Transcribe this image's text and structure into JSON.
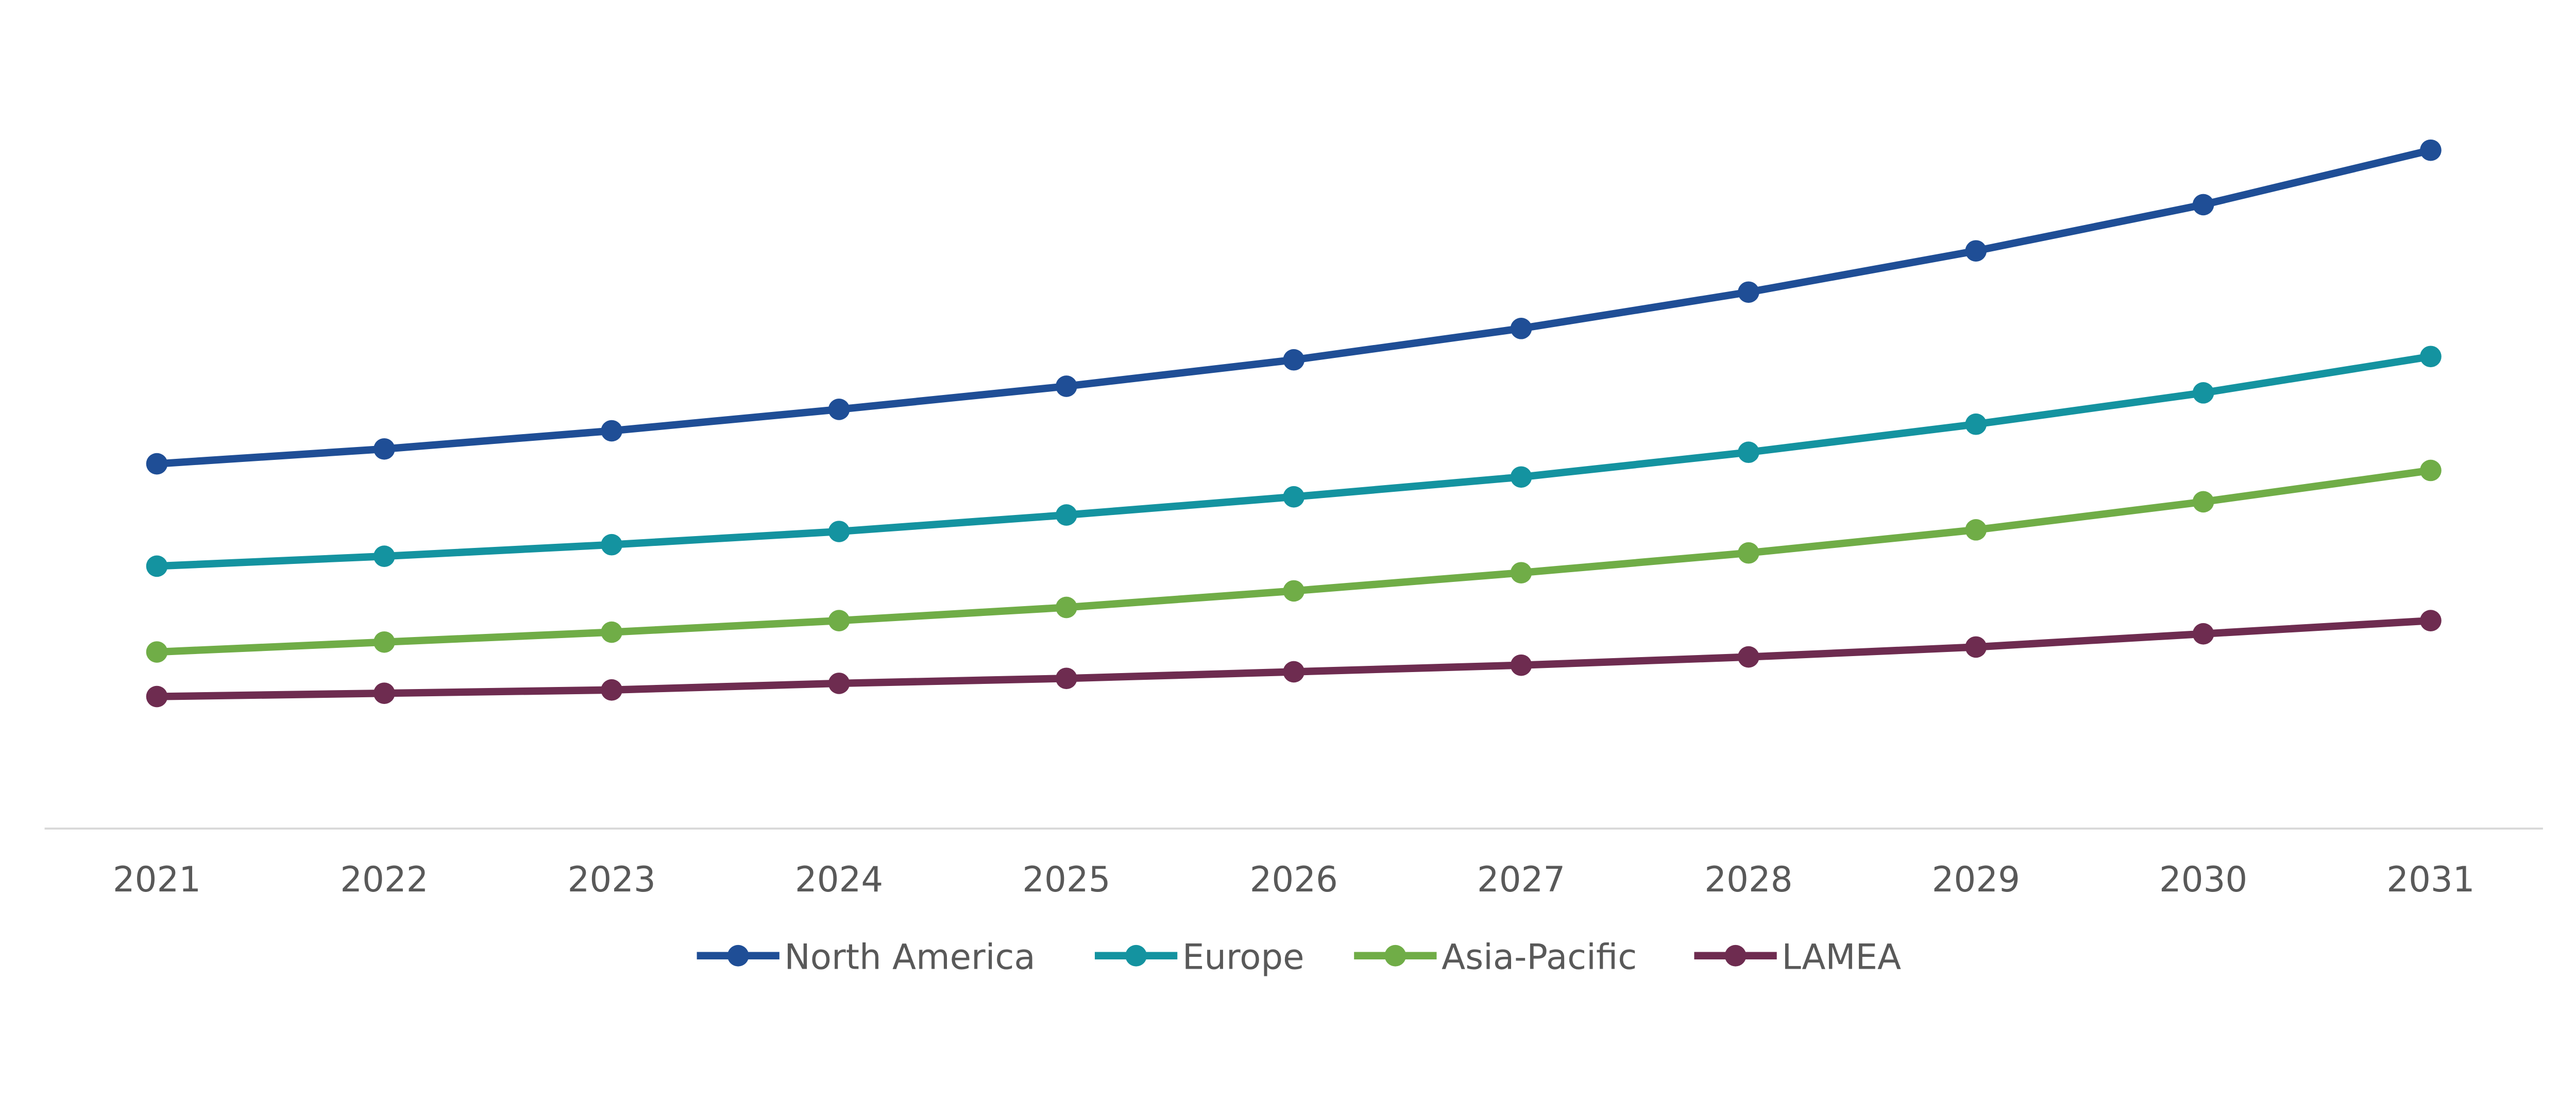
{
  "chart_data": {
    "type": "line",
    "title": "",
    "xlabel": "",
    "ylabel": "",
    "x": [
      "2021",
      "2022",
      "2023",
      "2024",
      "2025",
      "2026",
      "2027",
      "2028",
      "2029",
      "2030",
      "2031"
    ],
    "ylim": [
      0,
      500
    ],
    "y_axis_shown": false,
    "grid": false,
    "legend_position": "bottom",
    "series": [
      {
        "name": "North America",
        "color": "#1F4E96",
        "values": [
          221,
          230,
          241,
          254,
          268,
          284,
          303,
          325,
          350,
          378,
          411
        ]
      },
      {
        "name": "Europe",
        "color": "#1493A0",
        "values": [
          159,
          165,
          172,
          180,
          190,
          201,
          213,
          228,
          245,
          264,
          286
        ]
      },
      {
        "name": "Asia-Pacific",
        "color": "#70AD47",
        "values": [
          107,
          113,
          119,
          126,
          134,
          144,
          155,
          167,
          181,
          198,
          217
        ]
      },
      {
        "name": "LAMEA",
        "color": "#6E2C50",
        "values": [
          80,
          82,
          84,
          88,
          91,
          95,
          99,
          104,
          110,
          118,
          126
        ]
      }
    ]
  }
}
